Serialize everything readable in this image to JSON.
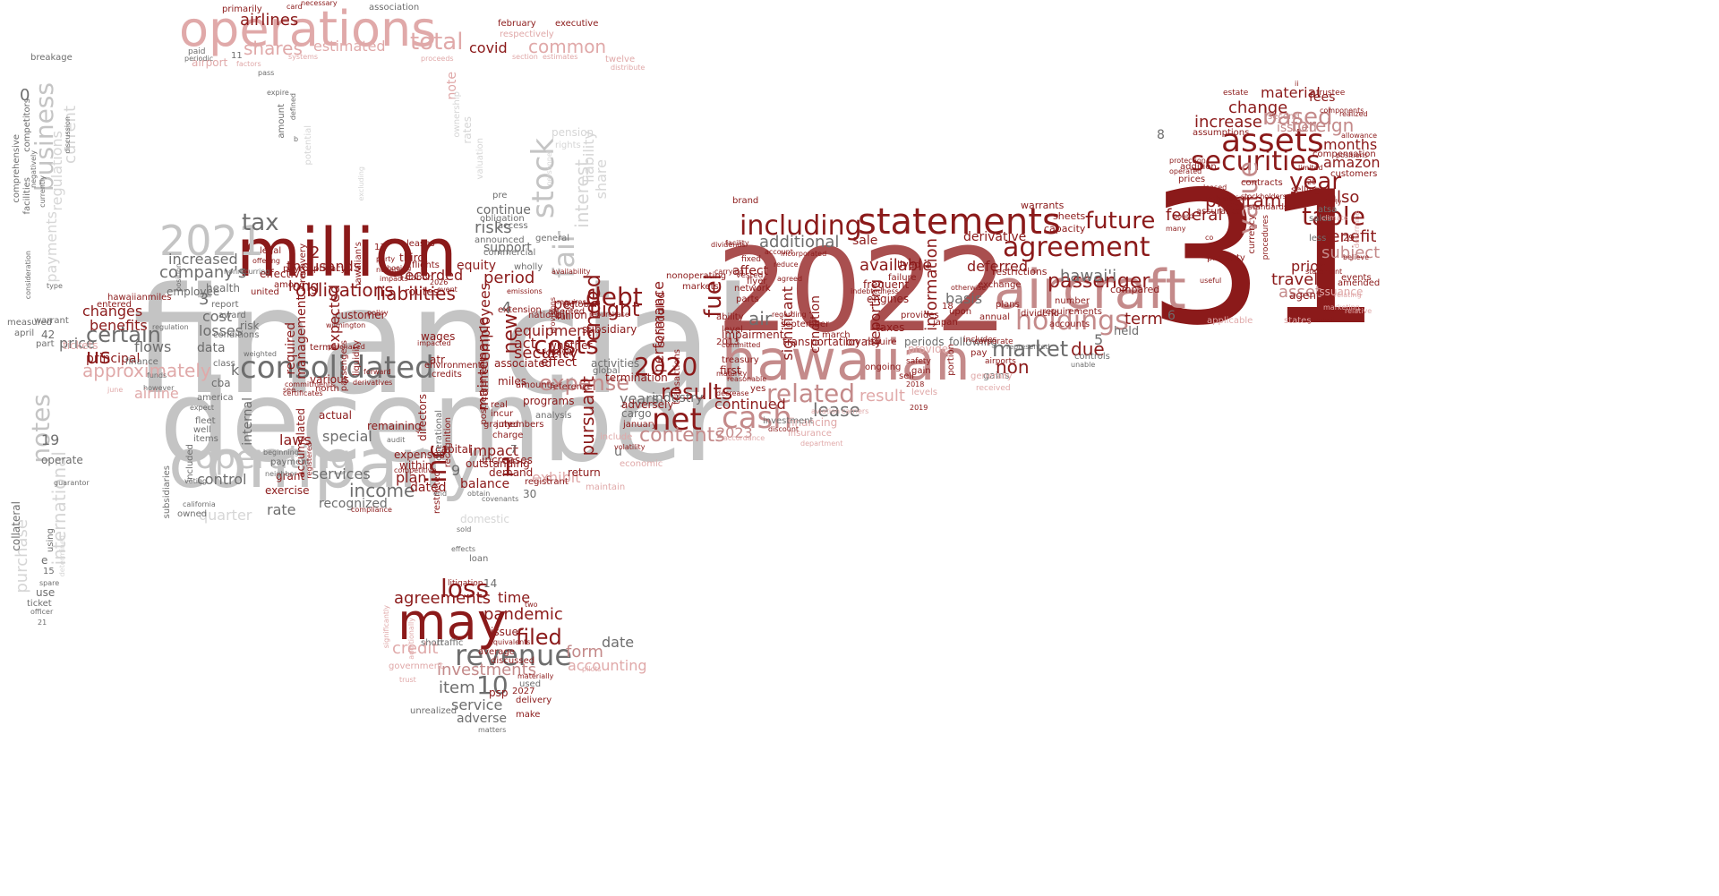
{
  "palette": {
    "dark": "#8b1a1a",
    "mid": "#a94f4f",
    "rose": "#c48a8a",
    "pink": "#e0a9a9",
    "gray": "#c4c4c4",
    "lightgray": "#d6d6d6",
    "darkgray": "#6e6e6e"
  },
  "words": {
    "financial": "financial",
    "december": "december",
    "company": "company",
    "y2022": "2022",
    "n31": "31",
    "million": "million",
    "hawaiian": "hawaiian",
    "aircraft": "aircraft",
    "operations": "operations",
    "y2021": "2021",
    "consolidated": "consolidated",
    "statements": "statements",
    "including": "including",
    "assets": "assets",
    "securities": "securities",
    "agreement": "agreement",
    "holdings": "holdings",
    "cash": "cash",
    "may": "may",
    "revenue": "revenue",
    "loss": "loss",
    "net": "net",
    "results": "results",
    "related": "related",
    "stock": "stock",
    "fair": "fair",
    "value": "value",
    "table": "table",
    "business": "business",
    "notes": "notes",
    "operating": "operating",
    "costs": "costs",
    "debt": "debt",
    "flight": "flight",
    "ended": "ended",
    "inc": "inc",
    "tax": "tax",
    "total": "total",
    "shares": "shares",
    "common": "common",
    "future": "future",
    "passenger": "passenger",
    "market": "market",
    "certain": "certain",
    "us": "us",
    "approximately": "approximately",
    "y2020": "2020",
    "contents": "contents",
    "expense": "expense",
    "filed": "filed",
    "pandemic": "pandemic",
    "agreements": "agreements",
    "item": "item",
    "n10": "10",
    "service": "service",
    "adverse": "adverse",
    "investments": "investments",
    "credit": "credit",
    "form": "form",
    "date": "date",
    "time": "time",
    "accounting": "accounting",
    "based": "based",
    "year": "year",
    "foreign": "foreign",
    "increase": "increase",
    "change": "change",
    "material": "material",
    "amazon": "amazon",
    "benefit": "benefit",
    "subject": "subject",
    "asset": "asset",
    "travel": "travel",
    "program": "program",
    "federal": "federal",
    "months": "months",
    "also": "also",
    "prior": "prior",
    "issued": "issued",
    "fees": "fees",
    "fuel": "fuel",
    "air": "air",
    "additional": "additional",
    "available": "available",
    "sale": "sale",
    "deferred": "deferred",
    "derivative": "derivative",
    "term": "term",
    "non": "non",
    "due": "due",
    "hawaii": "hawai'i",
    "lease": "lease",
    "result": "result",
    "basis": "basis",
    "reporting": "reporting",
    "information": "information",
    "performance": "performance",
    "significant": "significant",
    "continued": "continued",
    "impairment": "impairment",
    "y2023": "2023",
    "industry": "industry",
    "years": "years",
    "pursuant": "pursuant",
    "maintenance": "maintenance",
    "new": "new",
    "employees": "employees",
    "liabilities": "liabilities",
    "obligations": "obligations",
    "recorded": "recorded",
    "equity": "equity",
    "period": "period",
    "risks": "risks",
    "continue": "continue",
    "support": "support",
    "interest": "interest",
    "liability": "liability",
    "share": "share",
    "thousands": "thousands",
    "long": "long",
    "expected": "expected",
    "management": "management",
    "required": "required",
    "companys": "company's",
    "increased": "increased",
    "cost": "cost",
    "losses": "losses",
    "data": "data",
    "changes": "changes",
    "benefits": "benefits",
    "flows": "flows",
    "price": "price",
    "principal": "principal",
    "airline": "airline",
    "control": "control",
    "rate": "rate",
    "quarter": "quarter",
    "recognized": "recognized",
    "income": "income",
    "services": "services",
    "special": "special",
    "laws": "laws",
    "internal": "internal",
    "plan": "plan",
    "dated": "dated",
    "balance": "balance",
    "impact": "impact",
    "security": "security",
    "effect": "effect",
    "act": "act",
    "equipment": "equipment",
    "exhibit": "exhibit",
    "n1": "1",
    "n2": "2",
    "n3": "3",
    "n4": "4",
    "n5": "5",
    "n6": "6",
    "n8": "8",
    "n9": "9",
    "n19": "19",
    "n0": "0",
    "regulations": "regulations",
    "current": "current",
    "payments": "payments",
    "international": "international",
    "purchase": "purchase",
    "use": "use",
    "operate": "operate",
    "airlines": "airlines",
    "estimated": "estimated",
    "covid": "covid",
    "note": "note",
    "airport": "airport",
    "primarily": "primarily",
    "paid": "paid",
    "association": "association",
    "february": "february",
    "executive": "executive",
    "respectively": "respectively",
    "twelve": "twelve",
    "warrants": "warrants",
    "sheets": "sheets",
    "capacity": "capacity",
    "compared": "compared",
    "held": "held",
    "accounts": "accounts",
    "requirements": "requirements",
    "number": "number",
    "frequent": "frequent",
    "condition": "condition",
    "loyalty": "loyalty",
    "taxes": "taxes",
    "provide": "provide",
    "financing": "financing",
    "investment": "investment",
    "insurance": "insurance",
    "affect": "affect",
    "network": "network",
    "markets": "markets",
    "scheduled": "scheduled",
    "nonoperating": "nonoperating",
    "transactions": "transactions",
    "adversely": "adversely",
    "termination": "termination",
    "cargo": "cargo",
    "january": "january",
    "brand": "brand",
    "residual": "residual",
    "selling": "selling",
    "warrant": "warrant",
    "tickets": "tickets",
    "finance": "finance",
    "demand": "demand",
    "capital": "capital",
    "outstanding": "outstanding",
    "issuance": "issuance",
    "agent": "agent",
    "atsa": "atsa",
    "less": "less",
    "sales": "sales",
    "gains": "gains",
    "connection": "connection",
    "include": "include",
    "america": "america",
    "collateral": "collateral",
    "ticket": "ticket",
    "breakage": "breakage",
    "competitors": "competitors",
    "comprehensive": "comprehensive",
    "facilities": "facilities",
    "associated": "associated",
    "miles": "miles",
    "amounts": "amounts",
    "extension": "extension",
    "national": "national",
    "per": "per",
    "billion": "billion",
    "october": "october",
    "u": "u",
    "activities": "activities",
    "global": "global",
    "subsidiary": "subsidiary",
    "routes": "routes",
    "third": "third",
    "leases": "leases",
    "flights": "flights",
    "labor": "labor",
    "announced": "announced",
    "pension": "pension",
    "rights": "rights",
    "issuer": "issuer",
    "average": "average",
    "discussed": "discussed",
    "used": "used",
    "delivery": "delivery",
    "make": "make",
    "psp": "psp",
    "y2027": "2027",
    "litigation": "litigation",
    "short": "short",
    "traffic": "traffic",
    "government": "government",
    "unrealized": "unrealized",
    "n14": "14",
    "n30": "30",
    "n7": "7",
    "k": "k",
    "health": "health",
    "cba": "cba",
    "employee": "employee",
    "various": "various",
    "actual": "actual",
    "accumulated": "accumulated",
    "exercise": "exercise",
    "grant": "grant",
    "payment": "payment",
    "customer": "customer",
    "united": "united",
    "payroll": "payroll",
    "among": "among",
    "effective": "effective",
    "legal": "legal",
    "privacy": "privacy",
    "mexico": "mexico",
    "japan": "japan",
    "following": "following",
    "periods": "periods",
    "dividend": "dividend",
    "plans": "plans",
    "exchange": "exchange",
    "restrictions": "restrictions",
    "annual": "annual",
    "includes": "includes",
    "pay": "pay",
    "airports": "airports",
    "corporate": "corporate",
    "provides": "provides",
    "engines": "engines",
    "require": "require",
    "failure": "failure",
    "ongoing": "ongoing",
    "sell": "sell",
    "gain": "gain",
    "safety": "safety",
    "levels": "levels",
    "generally": "generally",
    "received": "received",
    "first": "first",
    "treasury": "treasury",
    "level": "level",
    "ability": "ability",
    "parts": "parts",
    "flyer": "flyer",
    "fixed": "fixed",
    "vested": "vested",
    "account": "account",
    "incorporated": "incorporated",
    "reduce": "reduce",
    "transportation": "transportation",
    "september": "september",
    "march": "march",
    "lived": "lived",
    "regarding": "regarding",
    "agreed": "agreed",
    "upon": "upon",
    "facility": "facility",
    "dividends": "dividends",
    "carrying": "carrying",
    "customers": "customers",
    "events": "events",
    "property": "property",
    "addition": "addition",
    "prices": "prices",
    "assurance": "assurance",
    "contracts": "contracts",
    "standards": "standards",
    "procedures": "procedures",
    "currency": "currency",
    "compensation": "compensation",
    "estate": "estate",
    "trustee": "trustee",
    "realized": "realized",
    "assumptions": "assumptions",
    "second": "second",
    "protection": "protection",
    "operated": "operated",
    "board": "board",
    "useful": "useful",
    "limited": "limited",
    "climate": "climate",
    "believe": "believe",
    "statement": "statement",
    "amended": "amended",
    "relating": "relating",
    "marketing": "marketing",
    "goodwill": "goodwill",
    "states": "states",
    "relative": "relative",
    "n29": "29",
    "n18": "18",
    "n13": "13",
    "leased": "leased",
    "historical": "historical",
    "stockholders": "stockholders",
    "applicable": "applicable",
    "controls": "controls",
    "represented": "represented",
    "unable": "unable",
    "allowance": "allowance",
    "many": "many",
    "co": "co",
    "components": "components",
    "expire": "expire",
    "amount": "amount",
    "defined": "defined",
    "potential": "potential",
    "b": "b",
    "including2": "including",
    "ownership": "ownership",
    "rates": "rates",
    "valuation": "valuation",
    "obligation": "obligation",
    "access": "access",
    "commercial": "commercial",
    "pre": "pre",
    "general": "general",
    "wholly": "wholly",
    "directors": "directors",
    "operational": "operational",
    "postretirement": "postretirement",
    "recognition": "recognition",
    "restricted": "restricted",
    "end": "end",
    "obtain": "obtain",
    "covenants": "covenants",
    "registrant": "registrant",
    "c": "c",
    "return": "return",
    "maintain": "maintain",
    "economic": "economic",
    "increases": "increases",
    "granted": "granted",
    "expenses": "expenses",
    "within": "within",
    "competitive": "competitive",
    "members": "members",
    "analysis": "analysis",
    "programs": "programs",
    "remaining": "remaining",
    "audit": "audit",
    "real": "real",
    "incur": "incur",
    "july": "july",
    "charge": "charge",
    "domestic": "domestic",
    "sold": "sold",
    "effects": "effects",
    "loan": "loan",
    "reference": "reference",
    "whether": "whether",
    "follows": "follows",
    "affected": "affected",
    "full": "full",
    "requires": "requires",
    "provisions": "provisions",
    "repurchase": "repurchase",
    "subsidiaries": "subsidiaries",
    "voting": "voting",
    "owned": "owned",
    "california": "california",
    "expect": "expect",
    "fleet": "fleet",
    "well": "well",
    "items": "items",
    "included": "included",
    "june": "june",
    "april": "april",
    "n42": "42",
    "part": "part",
    "measured": "measured",
    "regulation": "regulation",
    "position": "position",
    "type": "type",
    "consideration": "consideration",
    "guarantor": "guarantor",
    "spare": "spare",
    "officer": "officer",
    "n21": "21",
    "e": "e",
    "n15": "15",
    "using": "using",
    "determined": "determined",
    "conditions": "conditions",
    "risk": "risk",
    "award": "award",
    "policy": "policy",
    "passengers": "passengers",
    "liquidity": "liquidity",
    "boeing": "boeing",
    "negative": "negative",
    "impacts": "impacts",
    "party": "party",
    "wages": "wages",
    "impacted": "impacted",
    "atr": "atr",
    "environment": "environment",
    "credits": "credits",
    "event": "event",
    "y2026": "2026",
    "north": "north",
    "forward": "forward",
    "weighted": "weighted",
    "commitments": "commitments",
    "derivatives": "derivatives",
    "see": "see",
    "class": "class",
    "beginning": "beginning",
    "neighbor": "neighbor",
    "registered": "registered",
    "compliance": "compliance",
    "terms": "terms",
    "purchased": "purchased",
    "certificates": "certificates",
    "hawaiianmiles": "hawaiianmiles",
    "entered": "entered",
    "funds": "funds",
    "committed": "committed",
    "maturity": "maturity",
    "yes": "yes",
    "discount": "discount",
    "reasonable": "reasonable",
    "accordance": "accordance",
    "aviation": "aviation",
    "carriers": "carriers",
    "department": "department",
    "indebtedness": "indebtedness",
    "portion": "portion",
    "otherwise": "otherwise",
    "significantly": "significantly",
    "additionally": "additionally",
    "equivalents": "equivalents",
    "pilots": "pilots",
    "trust": "trust",
    "materially": "materially",
    "matters": "matters",
    "two": "two",
    "card": "card",
    "necessary": "necessary",
    "factors": "factors",
    "periodic": "periodic",
    "pass": "pass",
    "systems": "systems",
    "proceeds": "proceeds",
    "section": "section",
    "estimates": "estimates",
    "distribute": "distribute",
    "n11": "11",
    "ii": "ii",
    "positions": "positions",
    "n20": "20",
    "quarterly": "quarterly",
    "excluding": "excluding",
    "personnel": "personnel",
    "availability": "availability",
    "emissions": "emissions",
    "wilmington": "wilmington",
    "y2025": "y2025",
    "determine": "determine",
    "hawaiians": "hawaiian's",
    "recovery": "recovery",
    "offering": "offering",
    "report": "report",
    "aircrafts": "aircrafts",
    "nonrecurring": "nonrecurring",
    "y2013": "2013",
    "y2018": "2018",
    "y2019": "2019",
    "decrease": "decrease",
    "volatility": "volatility",
    "nonstop": "nonstop",
    "however": "however",
    "certificate": "certificate",
    "discussion": "discussion",
    "negatively": "negatively",
    "currently": "currently"
  }
}
